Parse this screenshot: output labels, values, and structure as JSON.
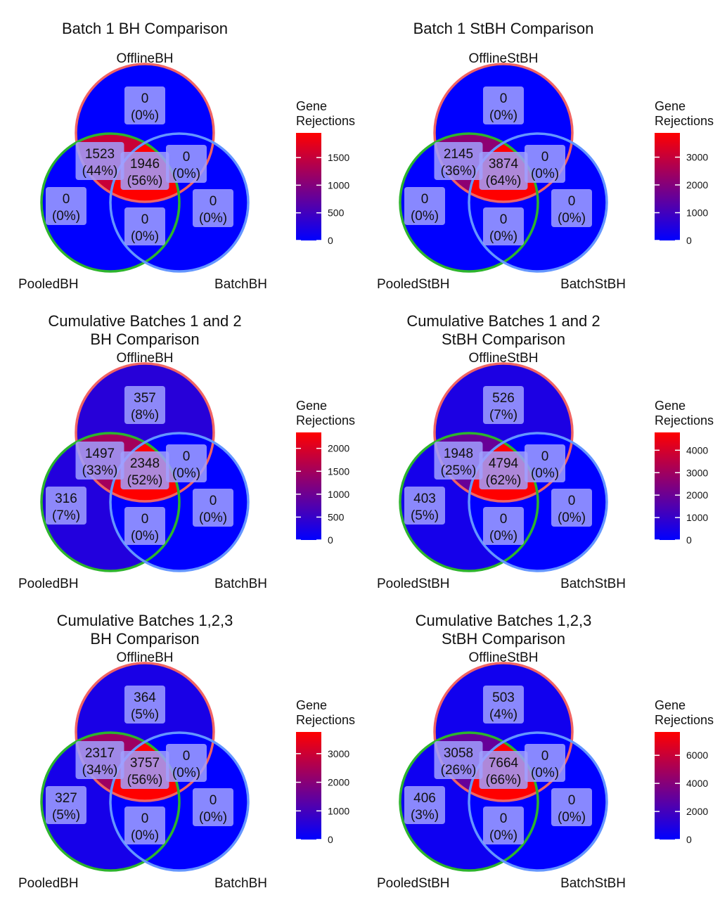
{
  "legend": {
    "title_line1": "Gene",
    "title_line2": "Rejections"
  },
  "colors": {
    "low": "#0000FF",
    "high": "#FF0000",
    "outline_offline": "#F06464",
    "outline_pooled": "#2DB42D",
    "outline_batch": "#6496FF",
    "label_box": "#A0A0FF"
  },
  "chart_data": [
    {
      "type": "venn",
      "title": [
        "Batch 1 BH Comparison"
      ],
      "set_labels": {
        "offline": "OfflineBH",
        "pooled": "PooledBH",
        "batch": "BatchBH"
      },
      "regions": {
        "offline_only": {
          "count": 0,
          "pct": "0%"
        },
        "offline_pooled": {
          "count": 1523,
          "pct": "44%"
        },
        "all_three": {
          "count": 1946,
          "pct": "56%"
        },
        "offline_batch": {
          "count": 0,
          "pct": "0%"
        },
        "pooled_only": {
          "count": 0,
          "pct": "0%"
        },
        "pooled_batch": {
          "count": 0,
          "pct": "0%"
        },
        "batch_only": {
          "count": 0,
          "pct": "0%"
        }
      },
      "scale": {
        "max": 1946,
        "ticks": [
          0,
          500,
          1000,
          1500
        ]
      }
    },
    {
      "type": "venn",
      "title": [
        "Batch 1 StBH Comparison"
      ],
      "set_labels": {
        "offline": "OfflineStBH",
        "pooled": "PooledStBH",
        "batch": "BatchStBH"
      },
      "regions": {
        "offline_only": {
          "count": 0,
          "pct": "0%"
        },
        "offline_pooled": {
          "count": 2145,
          "pct": "36%"
        },
        "all_three": {
          "count": 3874,
          "pct": "64%"
        },
        "offline_batch": {
          "count": 0,
          "pct": "0%"
        },
        "pooled_only": {
          "count": 0,
          "pct": "0%"
        },
        "pooled_batch": {
          "count": 0,
          "pct": "0%"
        },
        "batch_only": {
          "count": 0,
          "pct": "0%"
        }
      },
      "scale": {
        "max": 3874,
        "ticks": [
          0,
          1000,
          2000,
          3000
        ]
      }
    },
    {
      "type": "venn",
      "title": [
        "Cumulative Batches 1 and 2",
        "BH Comparison"
      ],
      "set_labels": {
        "offline": "OfflineBH",
        "pooled": "PooledBH",
        "batch": "BatchBH"
      },
      "regions": {
        "offline_only": {
          "count": 357,
          "pct": "8%"
        },
        "offline_pooled": {
          "count": 1497,
          "pct": "33%"
        },
        "all_three": {
          "count": 2348,
          "pct": "52%"
        },
        "offline_batch": {
          "count": 0,
          "pct": "0%"
        },
        "pooled_only": {
          "count": 316,
          "pct": "7%"
        },
        "pooled_batch": {
          "count": 0,
          "pct": "0%"
        },
        "batch_only": {
          "count": 0,
          "pct": "0%"
        }
      },
      "scale": {
        "max": 2348,
        "ticks": [
          0,
          500,
          1000,
          1500,
          2000
        ]
      }
    },
    {
      "type": "venn",
      "title": [
        "Cumulative Batches 1 and 2",
        "StBH Comparison"
      ],
      "set_labels": {
        "offline": "OfflineStBH",
        "pooled": "PooledStBH",
        "batch": "BatchStBH"
      },
      "regions": {
        "offline_only": {
          "count": 526,
          "pct": "7%"
        },
        "offline_pooled": {
          "count": 1948,
          "pct": "25%"
        },
        "all_three": {
          "count": 4794,
          "pct": "62%"
        },
        "offline_batch": {
          "count": 0,
          "pct": "0%"
        },
        "pooled_only": {
          "count": 403,
          "pct": "5%"
        },
        "pooled_batch": {
          "count": 0,
          "pct": "0%"
        },
        "batch_only": {
          "count": 0,
          "pct": "0%"
        }
      },
      "scale": {
        "max": 4794,
        "ticks": [
          0,
          1000,
          2000,
          3000,
          4000
        ]
      }
    },
    {
      "type": "venn",
      "title": [
        "Cumulative Batches 1,2,3",
        "BH Comparison"
      ],
      "set_labels": {
        "offline": "OfflineBH",
        "pooled": "PooledBH",
        "batch": "BatchBH"
      },
      "regions": {
        "offline_only": {
          "count": 364,
          "pct": "5%"
        },
        "offline_pooled": {
          "count": 2317,
          "pct": "34%"
        },
        "all_three": {
          "count": 3757,
          "pct": "56%"
        },
        "offline_batch": {
          "count": 0,
          "pct": "0%"
        },
        "pooled_only": {
          "count": 327,
          "pct": "5%"
        },
        "pooled_batch": {
          "count": 0,
          "pct": "0%"
        },
        "batch_only": {
          "count": 0,
          "pct": "0%"
        }
      },
      "scale": {
        "max": 3757,
        "ticks": [
          0,
          1000,
          2000,
          3000
        ]
      }
    },
    {
      "type": "venn",
      "title": [
        "Cumulative Batches 1,2,3",
        "StBH Comparison"
      ],
      "set_labels": {
        "offline": "OfflineStBH",
        "pooled": "PooledStBH",
        "batch": "BatchStBH"
      },
      "regions": {
        "offline_only": {
          "count": 503,
          "pct": "4%"
        },
        "offline_pooled": {
          "count": 3058,
          "pct": "26%"
        },
        "all_three": {
          "count": 7664,
          "pct": "66%"
        },
        "offline_batch": {
          "count": 0,
          "pct": "0%"
        },
        "pooled_only": {
          "count": 406,
          "pct": "3%"
        },
        "pooled_batch": {
          "count": 0,
          "pct": "0%"
        },
        "batch_only": {
          "count": 0,
          "pct": "0%"
        }
      },
      "scale": {
        "max": 7664,
        "ticks": [
          0,
          2000,
          4000,
          6000
        ]
      }
    }
  ]
}
